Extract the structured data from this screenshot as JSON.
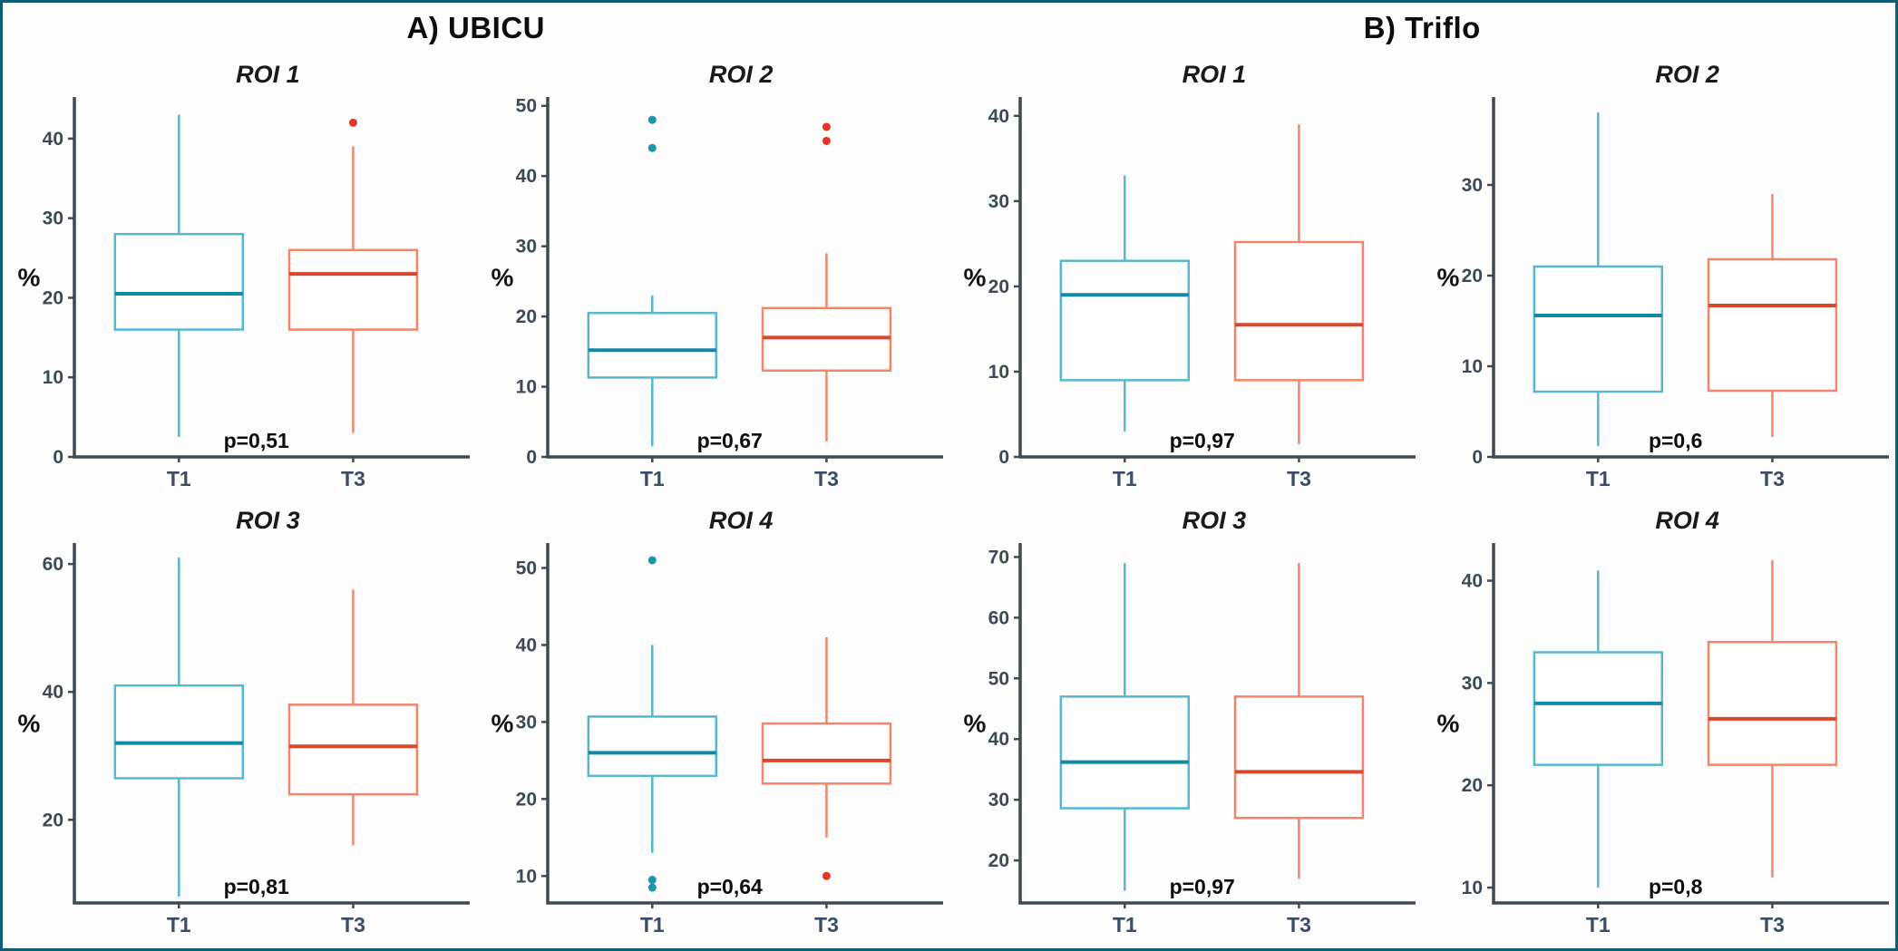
{
  "figure": {
    "panel_a_title": "A) UBICU",
    "panel_b_title": "B) Triflo",
    "border_color": "#0f5e74",
    "colors": {
      "t1_box": "#56b7ce",
      "t1_median": "#1088a6",
      "t1_outlier": "#1b96ae",
      "t3_box": "#f0876a",
      "t3_median": "#d9472b",
      "t3_outlier": "#e63323",
      "axis": "#3f4a55"
    }
  },
  "chart_data": [
    {
      "type": "box",
      "panel": "A) UBICU",
      "title": "ROI 1",
      "ylabel": "%",
      "p_value_label": "p=0,51",
      "categories": [
        "T1",
        "T3"
      ],
      "ylim": [
        0,
        45
      ],
      "yticks": [
        0,
        10,
        20,
        30,
        40
      ],
      "series": [
        {
          "name": "T1",
          "low": 2.5,
          "q1": 16,
          "median": 20.5,
          "q3": 28,
          "high": 43,
          "outliers": []
        },
        {
          "name": "T3",
          "low": 3,
          "q1": 16,
          "median": 23,
          "q3": 26,
          "high": 39,
          "outliers": [
            42
          ]
        }
      ]
    },
    {
      "type": "box",
      "panel": "A) UBICU",
      "title": "ROI 2",
      "ylabel": "%",
      "p_value_label": "p=0,67",
      "categories": [
        "T1",
        "T3"
      ],
      "ylim": [
        0,
        51
      ],
      "yticks": [
        0,
        10,
        20,
        30,
        40,
        50
      ],
      "series": [
        {
          "name": "T1",
          "low": 1.5,
          "q1": 11.3,
          "median": 15.2,
          "q3": 20.5,
          "high": 23,
          "outliers": [
            44,
            48
          ]
        },
        {
          "name": "T3",
          "low": 2.2,
          "q1": 12.3,
          "median": 17,
          "q3": 21.2,
          "high": 29,
          "outliers": [
            45,
            47
          ]
        }
      ]
    },
    {
      "type": "box",
      "panel": "A) UBICU",
      "title": "ROI 3",
      "ylabel": "%",
      "p_value_label": "p=0,81",
      "categories": [
        "T1",
        "T3"
      ],
      "ylim": [
        7,
        63
      ],
      "yticks": [
        20,
        40,
        60
      ],
      "series": [
        {
          "name": "T1",
          "low": 8,
          "q1": 26.5,
          "median": 32,
          "q3": 41,
          "high": 61,
          "outliers": []
        },
        {
          "name": "T3",
          "low": 16,
          "q1": 24,
          "median": 31.5,
          "q3": 38,
          "high": 56,
          "outliers": []
        }
      ]
    },
    {
      "type": "box",
      "panel": "A) UBICU",
      "title": "ROI 4",
      "ylabel": "%",
      "p_value_label": "p=0,64",
      "categories": [
        "T1",
        "T3"
      ],
      "ylim": [
        6.5,
        53
      ],
      "yticks": [
        10,
        20,
        30,
        40,
        50
      ],
      "series": [
        {
          "name": "T1",
          "low": 13,
          "q1": 23,
          "median": 26,
          "q3": 30.7,
          "high": 40,
          "outliers": [
            51,
            9.5,
            8.5
          ]
        },
        {
          "name": "T3",
          "low": 15,
          "q1": 22,
          "median": 25,
          "q3": 29.8,
          "high": 41,
          "outliers": [
            10
          ]
        }
      ]
    },
    {
      "type": "box",
      "panel": "B) Triflo",
      "title": "ROI 1",
      "ylabel": "%",
      "p_value_label": "p=0,97",
      "categories": [
        "T1",
        "T3"
      ],
      "ylim": [
        0,
        42
      ],
      "yticks": [
        0,
        10,
        20,
        30,
        40
      ],
      "series": [
        {
          "name": "T1",
          "low": 3,
          "q1": 9,
          "median": 19,
          "q3": 23,
          "high": 33,
          "outliers": []
        },
        {
          "name": "T3",
          "low": 1.5,
          "q1": 9,
          "median": 15.5,
          "q3": 25.2,
          "high": 39,
          "outliers": []
        }
      ]
    },
    {
      "type": "box",
      "panel": "B) Triflo",
      "title": "ROI 2",
      "ylabel": "%",
      "p_value_label": "p=0,6",
      "categories": [
        "T1",
        "T3"
      ],
      "ylim": [
        0,
        39.5
      ],
      "yticks": [
        0,
        10,
        20,
        30
      ],
      "series": [
        {
          "name": "T1",
          "low": 1.2,
          "q1": 7.2,
          "median": 15.6,
          "q3": 21,
          "high": 38,
          "outliers": []
        },
        {
          "name": "T3",
          "low": 2.2,
          "q1": 7.3,
          "median": 16.7,
          "q3": 21.8,
          "high": 29,
          "outliers": []
        }
      ]
    },
    {
      "type": "box",
      "panel": "B) Triflo",
      "title": "ROI 3",
      "ylabel": "%",
      "p_value_label": "p=0,97",
      "categories": [
        "T1",
        "T3"
      ],
      "ylim": [
        13,
        72
      ],
      "yticks": [
        20,
        30,
        40,
        50,
        60,
        70
      ],
      "series": [
        {
          "name": "T1",
          "low": 15,
          "q1": 28.6,
          "median": 36.2,
          "q3": 47,
          "high": 69,
          "outliers": []
        },
        {
          "name": "T3",
          "low": 17,
          "q1": 27,
          "median": 34.6,
          "q3": 47,
          "high": 69,
          "outliers": []
        }
      ]
    },
    {
      "type": "box",
      "panel": "B) Triflo",
      "title": "ROI 4",
      "ylabel": "%",
      "p_value_label": "p=0,8",
      "categories": [
        "T1",
        "T3"
      ],
      "ylim": [
        8.5,
        43.5
      ],
      "yticks": [
        10,
        20,
        30,
        40
      ],
      "series": [
        {
          "name": "T1",
          "low": 10,
          "q1": 22,
          "median": 28,
          "q3": 33,
          "high": 41,
          "outliers": []
        },
        {
          "name": "T3",
          "low": 11,
          "q1": 22,
          "median": 26.5,
          "q3": 34,
          "high": 42,
          "outliers": []
        }
      ]
    }
  ]
}
